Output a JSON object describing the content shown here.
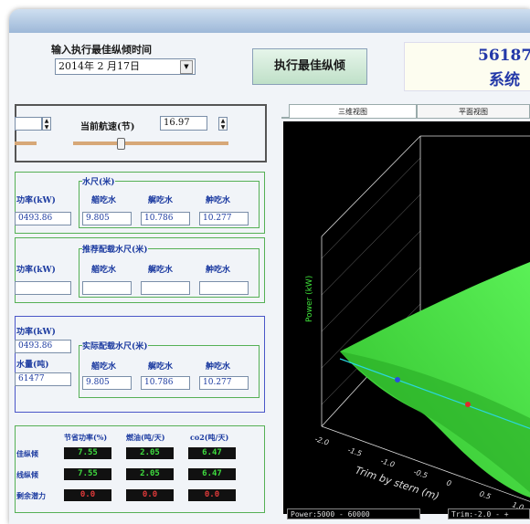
{
  "header": {
    "input_time_label": "输入执行最佳纵倾时间",
    "date_value": "2014年 2 月17日",
    "execute_button": "执行最佳纵倾",
    "title_line1": "56187",
    "title_line2": "系统"
  },
  "speed": {
    "current_speed_label": "当前航速(节)",
    "current_speed_value": "16.97"
  },
  "group1": {
    "power_label": "功率(kW)",
    "power_value": "0493.86",
    "draft_title": "水尺(米)",
    "col_fore": "艏吃水",
    "col_aft": "艉吃水",
    "col_mid": "舯吃水",
    "fore_value": "9.805",
    "aft_value": "10.786",
    "mid_value": "10.277"
  },
  "group2": {
    "power_label": "功率(kW)",
    "draft_title": "推荐配载水尺(米)",
    "col_fore": "艏吃水",
    "col_aft": "艉吃水",
    "col_mid": "舯吃水"
  },
  "group3": {
    "power_label": "功率(kW)",
    "power_value": "0493.86",
    "displacement_label": "水量(吨)",
    "displacement_value": "61477",
    "draft_title": "实际配载水尺(米)",
    "col_fore": "艏吃水",
    "col_aft": "艉吃水",
    "col_mid": "舯吃水",
    "fore_value": "9.805",
    "aft_value": "10.786",
    "mid_value": "10.277"
  },
  "savings": {
    "col_power": "节省功率(%)",
    "col_fuel": "燃油(吨/天)",
    "col_co2": "co2(吨/天)",
    "row1_label": "佳纵倾",
    "row2_label": "线纵倾",
    "row3_label": "剩余潜力",
    "row1": [
      "7.55",
      "2.05",
      "6.47"
    ],
    "row2": [
      "7.55",
      "2.05",
      "6.47"
    ],
    "row3": [
      "0.0",
      "0.0",
      "0.0"
    ]
  },
  "tabs": {
    "tab_3d": "三维视图",
    "tab_plan": "平面视图"
  },
  "plot": {
    "z_axis_label": "Power (kW)",
    "x_axis_label": "Trim by stern (m)",
    "x_ticks": [
      "-2.0",
      "-1.5",
      "-1.0",
      "-0.5",
      "0",
      "0.5",
      "1.0"
    ],
    "status_power": "Power:5000 - 60000",
    "status_trim": "Trim:-2.0 - +",
    "surface_color": "#3fe23a",
    "grid_color": "#dddddd",
    "line_color": "#2ad7e0"
  }
}
